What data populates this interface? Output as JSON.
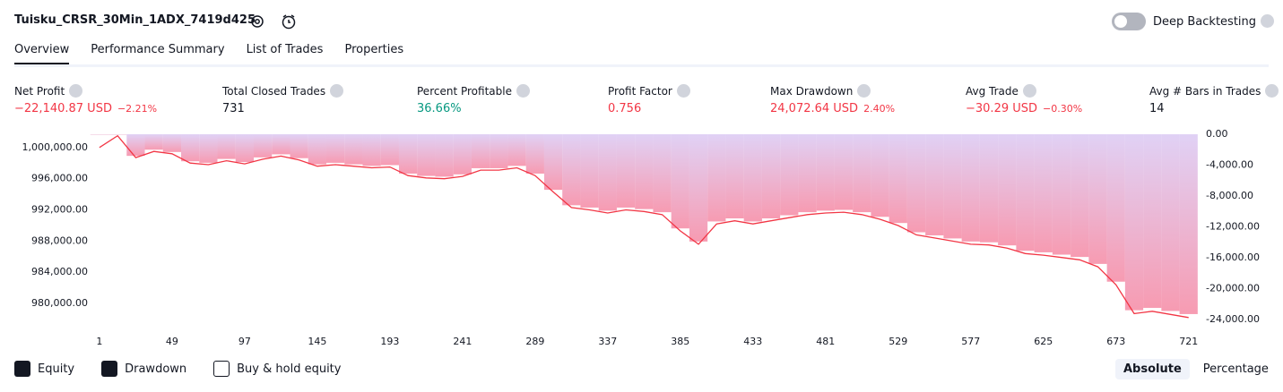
{
  "header": {
    "title": "Tuisku_CRSR_30Min_1ADX_7419d425",
    "toggle_label": "Deep Backtesting"
  },
  "tabs": [
    "Overview",
    "Performance Summary",
    "List of Trades",
    "Properties"
  ],
  "metrics": [
    {
      "label": "Net Profit",
      "value": "−22,140.87 USD",
      "extra": "−2.21%",
      "color": "#f23645"
    },
    {
      "label": "Total Closed Trades",
      "value": "731",
      "color": "#131722"
    },
    {
      "label": "Percent Profitable",
      "value": "36.66%",
      "color": "#089981"
    },
    {
      "label": "Profit Factor",
      "value": "0.756",
      "color": "#f23645"
    },
    {
      "label": "Max Drawdown",
      "value": "24,072.64 USD",
      "extra": "2.40%",
      "color": "#f23645"
    },
    {
      "label": "Avg Trade",
      "value": "−30.29 USD",
      "extra": "−0.30%",
      "color": "#f23645"
    },
    {
      "label": "Avg # Bars in Trades",
      "value": "14",
      "color": "#131722"
    }
  ],
  "chart_data": {
    "type": "combo",
    "x": [
      1,
      13,
      25,
      37,
      49,
      61,
      73,
      85,
      97,
      109,
      121,
      133,
      145,
      157,
      169,
      181,
      193,
      205,
      217,
      229,
      241,
      253,
      265,
      277,
      289,
      301,
      313,
      325,
      337,
      349,
      361,
      373,
      385,
      397,
      409,
      421,
      433,
      445,
      457,
      469,
      481,
      493,
      505,
      517,
      529,
      541,
      553,
      565,
      577,
      589,
      601,
      613,
      625,
      637,
      649,
      661,
      673,
      685,
      697,
      709,
      721
    ],
    "xlim": [
      -2.5,
      726.5
    ],
    "xticks": [
      1,
      49,
      97,
      145,
      193,
      241,
      289,
      337,
      385,
      433,
      481,
      529,
      577,
      625,
      673,
      721
    ],
    "ylim": [
      977600,
      1001700
    ],
    "yticks": [
      {
        "value": 980000,
        "label": "980,000.00"
      },
      {
        "value": 984000,
        "label": "984,000.00"
      },
      {
        "value": 988000,
        "label": "988,000.00"
      },
      {
        "value": 992000,
        "label": "992,000.00"
      },
      {
        "value": 996000,
        "label": "996,000.00"
      },
      {
        "value": 1000000,
        "label": "1,000,000.00"
      }
    ],
    "y2lim": [
      -24350,
      0
    ],
    "y2ticks": [
      {
        "value": 0,
        "label": "0.00"
      },
      {
        "value": -4000,
        "label": "-4,000.00"
      },
      {
        "value": -8000,
        "label": "-8,000.00"
      },
      {
        "value": -12000,
        "label": "-12,000.00"
      },
      {
        "value": -16000,
        "label": "-16,000.00"
      },
      {
        "value": -20000,
        "label": "-20,000.00"
      },
      {
        "value": -24000,
        "label": "-24,000.00"
      }
    ],
    "series": [
      {
        "name": "Equity",
        "type": "line",
        "color": "#f23645",
        "values": [
          1000000,
          1001500,
          998700,
          999500,
          999200,
          998000,
          997800,
          998300,
          997900,
          998500,
          998900,
          998400,
          997600,
          997800,
          997600,
          997400,
          997500,
          996400,
          996100,
          996000,
          996300,
          997100,
          997100,
          997400,
          996400,
          994300,
          992300,
          992000,
          991600,
          992000,
          991800,
          991400,
          989300,
          987600,
          990200,
          990600,
          990200,
          990600,
          991000,
          991400,
          991600,
          991700,
          991400,
          990800,
          990000,
          988800,
          988400,
          988000,
          987600,
          987500,
          987100,
          986400,
          986200,
          985900,
          985600,
          984700,
          982400,
          978700,
          979000,
          978600,
          978200
        ]
      },
      {
        "name": "Drawdown",
        "type": "bar",
        "axis": "y2",
        "color": "#f7a6bd",
        "values": [
          0,
          0,
          -2800,
          -2000,
          -2300,
          -3500,
          -3700,
          -3200,
          -3600,
          -3000,
          -2600,
          -3100,
          -3900,
          -3700,
          -3900,
          -4100,
          -4000,
          -5100,
          -5400,
          -5500,
          -5200,
          -4400,
          -4400,
          -4100,
          -5100,
          -7200,
          -9200,
          -9500,
          -9900,
          -9500,
          -9700,
          -10100,
          -12200,
          -13900,
          -11300,
          -10900,
          -11300,
          -10900,
          -10500,
          -10100,
          -9900,
          -9800,
          -10100,
          -10700,
          -11500,
          -12700,
          -13100,
          -13500,
          -13900,
          -14000,
          -14400,
          -15100,
          -15300,
          -15600,
          -15900,
          -16800,
          -19100,
          -22800,
          -22500,
          -22900,
          -23300
        ]
      }
    ]
  },
  "footer": {
    "extra_option": "Buy & hold equity",
    "scale_buttons": [
      "Absolute",
      "Percentage"
    ]
  }
}
